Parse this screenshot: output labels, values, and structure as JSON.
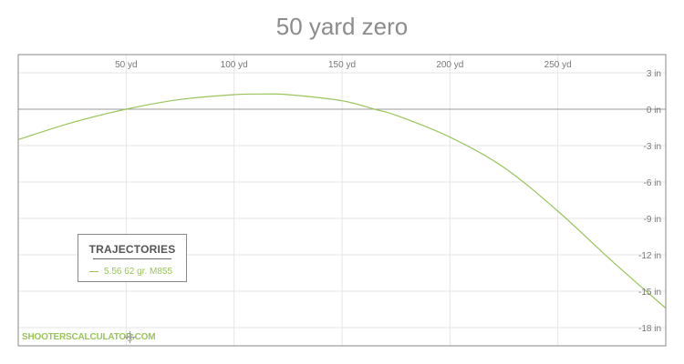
{
  "chart_data": {
    "type": "line",
    "title": "50 yard zero",
    "x_unit": "yd",
    "y_unit": "in",
    "xlim": [
      0,
      300
    ],
    "ylim": [
      -19.5,
      4.5
    ],
    "x_ticks": [
      50,
      100,
      150,
      200,
      250
    ],
    "x_tick_labels": [
      "50 yd",
      "100 yd",
      "150 yd",
      "200 yd",
      "250 yd"
    ],
    "y_ticks": [
      3,
      0,
      -3,
      -6,
      -9,
      -12,
      -15,
      -18
    ],
    "y_tick_labels": [
      "3 in",
      "0 in",
      "-3 in",
      "-6 in",
      "-9 in",
      "-12 in",
      "-15 in",
      "-18 in"
    ],
    "grid": true,
    "legend": {
      "title": "TRAJECTORIES",
      "position": "bottom-left"
    },
    "series": [
      {
        "name": "5.56 62 gr. M855",
        "color": "#9ac45a",
        "x": [
          0,
          25,
          50,
          75,
          100,
          115,
          125,
          150,
          165,
          175,
          200,
          225,
          250,
          275,
          300
        ],
        "y": [
          -2.5,
          -1.1,
          0.0,
          0.8,
          1.2,
          1.25,
          1.2,
          0.7,
          0.0,
          -0.5,
          -2.3,
          -4.8,
          -8.4,
          -12.5,
          -16.4
        ]
      }
    ]
  },
  "watermark": "SHOOTERSCALCULATOR.COM",
  "icons": {
    "move": "move-icon"
  }
}
